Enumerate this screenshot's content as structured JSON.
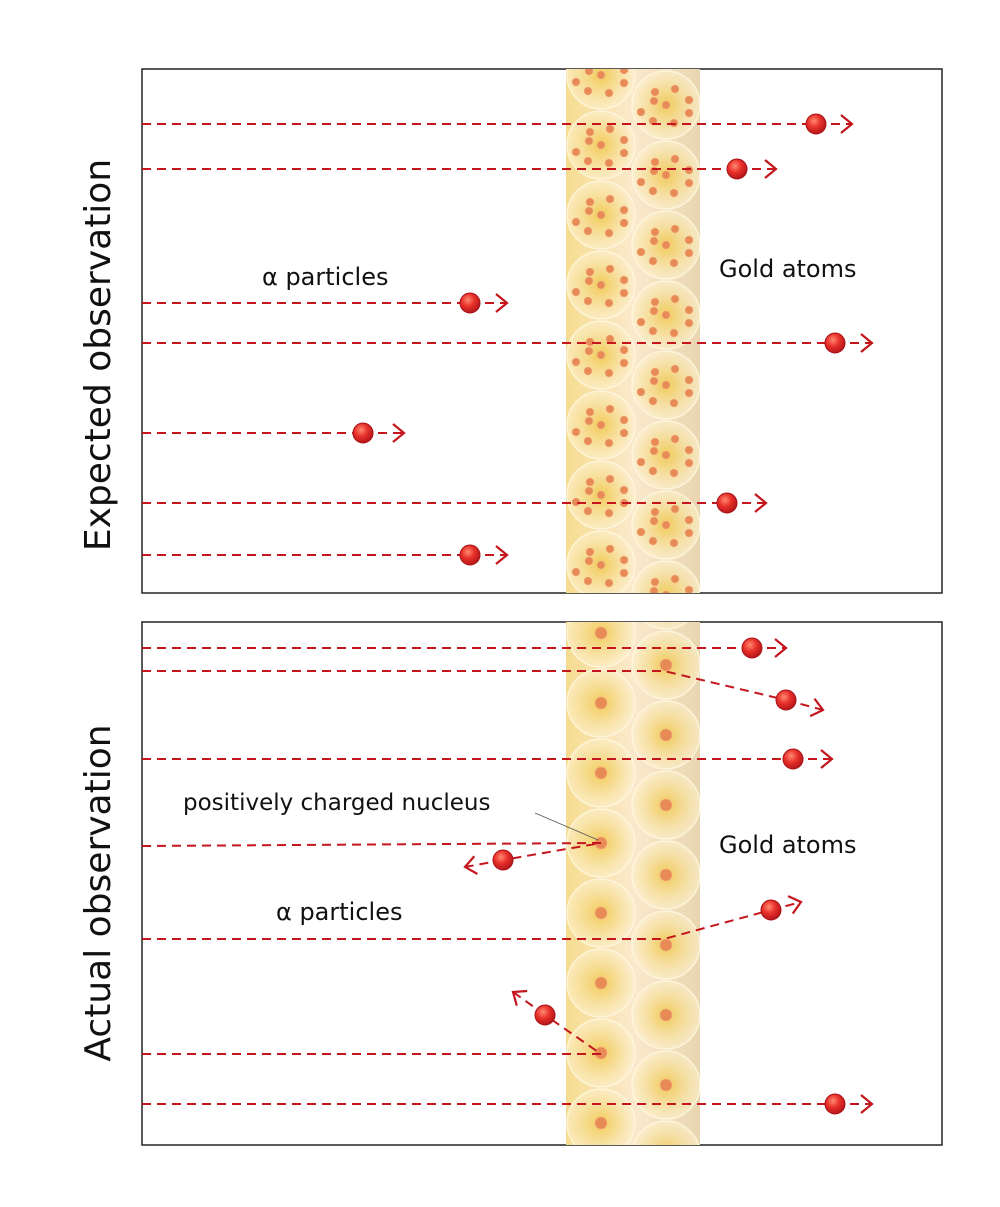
{
  "panels": {
    "expected": {
      "title": "Expected observation",
      "particles_label": "α particles",
      "atoms_label": "Gold atoms"
    },
    "actual": {
      "title": "Actual observation",
      "particles_label": "α particles",
      "atoms_label": "Gold atoms",
      "nucleus_label": "positively charged nucleus"
    }
  },
  "colors": {
    "path": "#c4161c",
    "particle": "#e8302a",
    "gold_foil": "#f7e3a6",
    "nucleus": "#e88a55",
    "frame": "#222222"
  }
}
